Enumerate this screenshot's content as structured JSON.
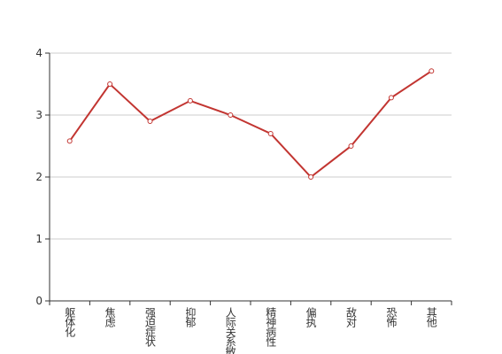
{
  "chart_data": {
    "type": "line",
    "categories": [
      "躯体化",
      "焦虑",
      "强迫症状",
      "抑郁",
      "人际关系敏感",
      "精神病性",
      "偏执",
      "敌对",
      "恐怖",
      "其他"
    ],
    "values": [
      2.58,
      3.5,
      2.9,
      3.23,
      3.0,
      2.7,
      2.0,
      2.5,
      3.28,
      3.71
    ],
    "color": "#c23531",
    "ylim": [
      0,
      4
    ],
    "yticks": [
      0,
      1,
      2,
      3,
      4
    ],
    "grid": true
  }
}
